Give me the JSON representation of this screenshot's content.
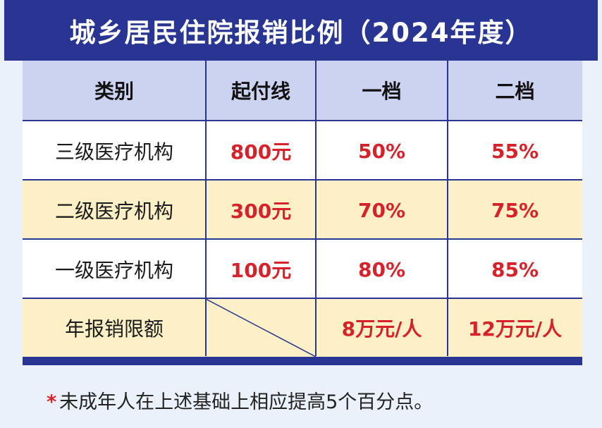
{
  "title": "城乡居民住院报销比例（2024年度）",
  "table": {
    "headers": [
      "类别",
      "起付线",
      "一档",
      "二档"
    ],
    "rows": [
      {
        "category": "三级医疗机构",
        "deductible": "800元",
        "tier1": "50%",
        "tier2": "55%"
      },
      {
        "category": "二级医疗机构",
        "deductible": "300元",
        "tier1": "70%",
        "tier2": "75%"
      },
      {
        "category": "一级医疗机构",
        "deductible": "100元",
        "tier1": "80%",
        "tier2": "85%"
      },
      {
        "category": "年报销限额",
        "deductible": "",
        "tier1": "8万元/人",
        "tier2": "12万元/人"
      }
    ]
  },
  "footnote": {
    "mark": "*",
    "text": "未成年人在上述基础上相应提高5个百分点。"
  },
  "colors": {
    "title_bg": "#283593",
    "header_bg": "#ccd3f0",
    "alt_row_bg": "#fdf0c6",
    "value_red": "#d6222a"
  }
}
